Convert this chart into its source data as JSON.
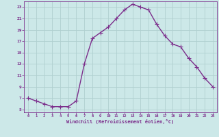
{
  "x": [
    0,
    1,
    2,
    3,
    4,
    5,
    6,
    7,
    8,
    9,
    10,
    11,
    12,
    13,
    14,
    15,
    16,
    17,
    18,
    19,
    20,
    21,
    22,
    23
  ],
  "y": [
    7.0,
    6.5,
    6.0,
    5.5,
    5.5,
    5.5,
    6.5,
    13.0,
    17.5,
    18.5,
    19.5,
    21.0,
    22.5,
    23.5,
    23.0,
    22.5,
    20.0,
    18.0,
    16.5,
    16.0,
    14.0,
    12.5,
    10.5,
    9.0
  ],
  "line_color": "#7b2d8b",
  "marker": "+",
  "marker_size": 4,
  "bg_color": "#cce8e8",
  "grid_color": "#b0d0d0",
  "xlabel": "Windchill (Refroidissement éolien,°C)",
  "xlabel_color": "#7b2d8b",
  "tick_color": "#7b2d8b",
  "xlim": [
    -0.5,
    23.5
  ],
  "ylim": [
    4.5,
    24.0
  ],
  "yticks": [
    5,
    7,
    9,
    11,
    13,
    15,
    17,
    19,
    21,
    23
  ],
  "xticks": [
    0,
    1,
    2,
    3,
    4,
    5,
    6,
    7,
    8,
    9,
    10,
    11,
    12,
    13,
    14,
    15,
    16,
    17,
    18,
    19,
    20,
    21,
    22,
    23
  ],
  "linewidth": 1.0,
  "marker_linewidth": 0.8
}
